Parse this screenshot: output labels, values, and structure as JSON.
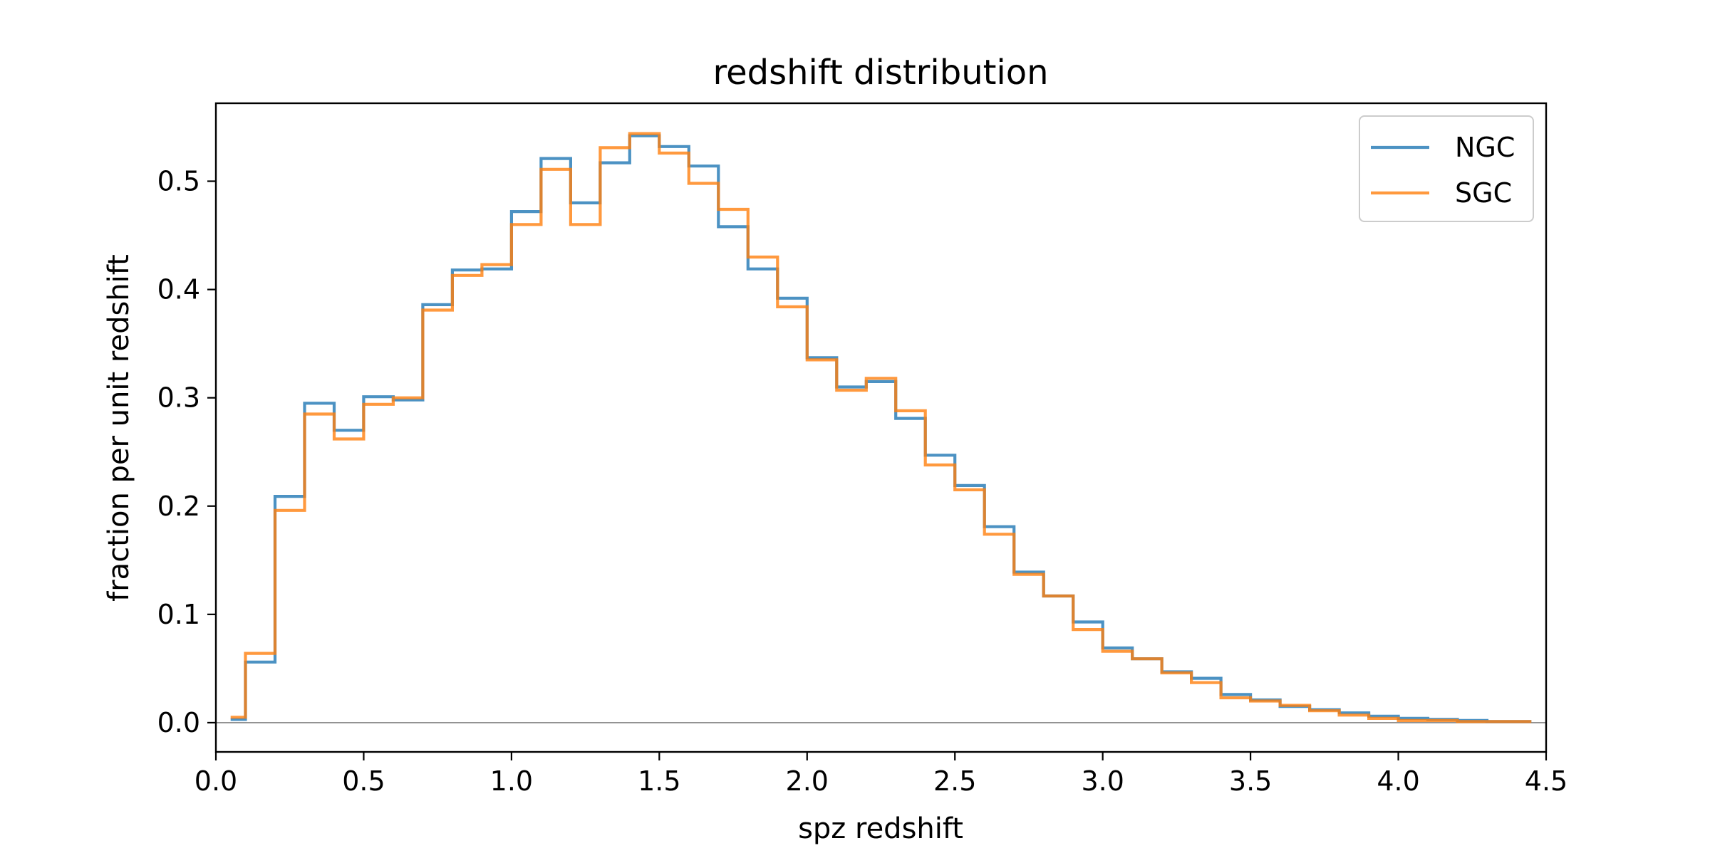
{
  "chart_data": {
    "type": "line",
    "subtype": "step-histogram",
    "title": "redshift distribution",
    "xlabel": "spz redshift",
    "ylabel": "fraction per unit redshift",
    "xlim": [
      0.0,
      4.5
    ],
    "ylim": [
      -0.027,
      0.572
    ],
    "x_ticks": [
      "0.0",
      "0.5",
      "1.0",
      "1.5",
      "2.0",
      "2.5",
      "3.0",
      "3.5",
      "4.0",
      "4.5"
    ],
    "y_ticks": [
      "0.0",
      "0.1",
      "0.2",
      "0.3",
      "0.4",
      "0.5"
    ],
    "grid": false,
    "zero_line": true,
    "legend_position": "top-right",
    "bin_edges": [
      0.05,
      0.1,
      0.2,
      0.3,
      0.4,
      0.5,
      0.6,
      0.7,
      0.8,
      0.9,
      1.0,
      1.1,
      1.2,
      1.3,
      1.4,
      1.5,
      1.6,
      1.7,
      1.8,
      1.9,
      2.0,
      2.1,
      2.2,
      2.3,
      2.4,
      2.5,
      2.6,
      2.7,
      2.8,
      2.9,
      3.0,
      3.1,
      3.2,
      3.3,
      3.4,
      3.5,
      3.6,
      3.7,
      3.8,
      3.9,
      4.0,
      4.1,
      4.2,
      4.3,
      4.45
    ],
    "series": [
      {
        "name": "NGC",
        "color": "#1f77b4",
        "values": [
          0.003,
          0.056,
          0.209,
          0.295,
          0.27,
          0.301,
          0.298,
          0.386,
          0.418,
          0.419,
          0.472,
          0.521,
          0.48,
          0.517,
          0.542,
          0.532,
          0.514,
          0.458,
          0.419,
          0.392,
          0.337,
          0.31,
          0.315,
          0.281,
          0.247,
          0.219,
          0.181,
          0.139,
          0.117,
          0.093,
          0.069,
          0.059,
          0.047,
          0.041,
          0.026,
          0.021,
          0.015,
          0.012,
          0.009,
          0.006,
          0.004,
          0.003,
          0.002,
          0.001
        ]
      },
      {
        "name": "SGC",
        "color": "#ff7f0e",
        "values": [
          0.005,
          0.064,
          0.196,
          0.285,
          0.262,
          0.294,
          0.3,
          0.381,
          0.413,
          0.423,
          0.46,
          0.511,
          0.46,
          0.531,
          0.544,
          0.526,
          0.498,
          0.474,
          0.43,
          0.384,
          0.335,
          0.307,
          0.318,
          0.288,
          0.238,
          0.215,
          0.174,
          0.137,
          0.117,
          0.086,
          0.066,
          0.059,
          0.046,
          0.037,
          0.023,
          0.02,
          0.016,
          0.011,
          0.007,
          0.004,
          0.002,
          0.002,
          0.001,
          0.001
        ]
      }
    ]
  }
}
